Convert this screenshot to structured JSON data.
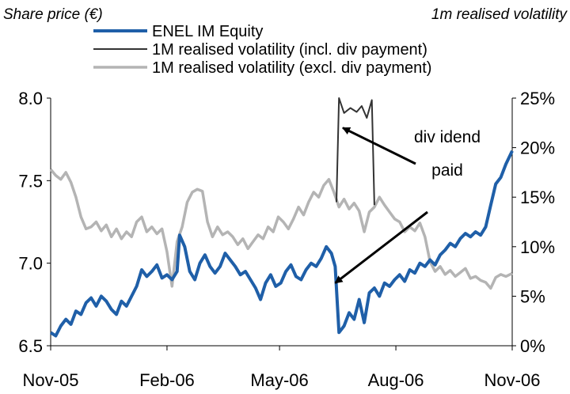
{
  "chart_data": {
    "type": "line",
    "left_axis_title": "Share price (€)",
    "right_axis_title": "1m realised volatility",
    "x_ticks": [
      "Nov-05",
      "Feb-06",
      "May-06",
      "Aug-06",
      "Nov-06"
    ],
    "x_range": [
      "2005-11-01",
      "2006-11-01"
    ],
    "y_left_ticks": [
      "6.5",
      "7.0",
      "7.5",
      "8.0"
    ],
    "y_left_range": [
      6.5,
      8.0
    ],
    "y_right_ticks": [
      "0%",
      "5%",
      "10%",
      "15%",
      "20%",
      "25%"
    ],
    "y_right_range": [
      0,
      25
    ],
    "grid": false,
    "legend_position": "top",
    "series": [
      {
        "name": "ENEL IM Equity",
        "axis": "left",
        "color": "#1f5fa8",
        "points": [
          [
            "2005-11-01",
            6.58
          ],
          [
            "2005-11-05",
            6.56
          ],
          [
            "2005-11-09",
            6.62
          ],
          [
            "2005-11-13",
            6.66
          ],
          [
            "2005-11-17",
            6.63
          ],
          [
            "2005-11-21",
            6.71
          ],
          [
            "2005-11-25",
            6.69
          ],
          [
            "2005-11-29",
            6.76
          ],
          [
            "2005-12-03",
            6.79
          ],
          [
            "2005-12-07",
            6.74
          ],
          [
            "2005-12-11",
            6.8
          ],
          [
            "2005-12-15",
            6.77
          ],
          [
            "2005-12-19",
            6.72
          ],
          [
            "2005-12-23",
            6.69
          ],
          [
            "2005-12-27",
            6.77
          ],
          [
            "2005-12-31",
            6.74
          ],
          [
            "2006-01-04",
            6.8
          ],
          [
            "2006-01-08",
            6.86
          ],
          [
            "2006-01-12",
            6.96
          ],
          [
            "2006-01-16",
            6.92
          ],
          [
            "2006-01-20",
            6.95
          ],
          [
            "2006-01-24",
            6.99
          ],
          [
            "2006-01-28",
            6.91
          ],
          [
            "2006-02-01",
            6.93
          ],
          [
            "2006-02-05",
            6.9
          ],
          [
            "2006-02-09",
            6.95
          ],
          [
            "2006-02-11",
            7.17
          ],
          [
            "2006-02-15",
            7.1
          ],
          [
            "2006-02-19",
            6.95
          ],
          [
            "2006-02-23",
            6.9
          ],
          [
            "2006-02-27",
            7.0
          ],
          [
            "2006-03-03",
            7.05
          ],
          [
            "2006-03-07",
            6.98
          ],
          [
            "2006-03-11",
            6.94
          ],
          [
            "2006-03-15",
            6.98
          ],
          [
            "2006-03-19",
            7.06
          ],
          [
            "2006-03-23",
            7.02
          ],
          [
            "2006-03-27",
            6.98
          ],
          [
            "2006-03-31",
            6.93
          ],
          [
            "2006-04-04",
            6.95
          ],
          [
            "2006-04-08",
            6.9
          ],
          [
            "2006-04-12",
            6.85
          ],
          [
            "2006-04-16",
            6.78
          ],
          [
            "2006-04-20",
            6.88
          ],
          [
            "2006-04-24",
            6.93
          ],
          [
            "2006-04-28",
            6.86
          ],
          [
            "2006-05-02",
            6.88
          ],
          [
            "2006-05-06",
            6.95
          ],
          [
            "2006-05-10",
            6.99
          ],
          [
            "2006-05-14",
            6.92
          ],
          [
            "2006-05-18",
            6.9
          ],
          [
            "2006-05-22",
            6.96
          ],
          [
            "2006-05-26",
            7.0
          ],
          [
            "2006-05-30",
            6.98
          ],
          [
            "2006-06-03",
            7.03
          ],
          [
            "2006-06-07",
            7.1
          ],
          [
            "2006-06-11",
            7.06
          ],
          [
            "2006-06-14",
            6.98
          ],
          [
            "2006-06-17",
            6.58
          ],
          [
            "2006-06-21",
            6.62
          ],
          [
            "2006-06-25",
            6.7
          ],
          [
            "2006-06-29",
            6.66
          ],
          [
            "2006-07-03",
            6.78
          ],
          [
            "2006-07-07",
            6.64
          ],
          [
            "2006-07-11",
            6.82
          ],
          [
            "2006-07-15",
            6.85
          ],
          [
            "2006-07-19",
            6.8
          ],
          [
            "2006-07-23",
            6.88
          ],
          [
            "2006-07-27",
            6.86
          ],
          [
            "2006-07-31",
            6.9
          ],
          [
            "2006-08-04",
            6.93
          ],
          [
            "2006-08-08",
            6.89
          ],
          [
            "2006-08-12",
            6.96
          ],
          [
            "2006-08-16",
            6.94
          ],
          [
            "2006-08-20",
            7.0
          ],
          [
            "2006-08-24",
            6.98
          ],
          [
            "2006-08-28",
            7.02
          ],
          [
            "2006-09-01",
            6.99
          ],
          [
            "2006-09-05",
            7.05
          ],
          [
            "2006-09-09",
            7.08
          ],
          [
            "2006-09-13",
            7.12
          ],
          [
            "2006-09-17",
            7.1
          ],
          [
            "2006-09-21",
            7.15
          ],
          [
            "2006-09-25",
            7.18
          ],
          [
            "2006-09-29",
            7.16
          ],
          [
            "2006-10-03",
            7.19
          ],
          [
            "2006-10-07",
            7.17
          ],
          [
            "2006-10-11",
            7.22
          ],
          [
            "2006-10-15",
            7.35
          ],
          [
            "2006-10-19",
            7.48
          ],
          [
            "2006-10-23",
            7.52
          ],
          [
            "2006-10-27",
            7.6
          ],
          [
            "2006-11-01",
            7.68
          ]
        ]
      },
      {
        "name": "1M realised volatility (incl. div payment)",
        "axis": "right",
        "color": "#333333",
        "points": [
          [
            "2006-06-15",
            14.5
          ],
          [
            "2006-06-17",
            25.0
          ],
          [
            "2006-06-21",
            23.5
          ],
          [
            "2006-06-26",
            24.0
          ],
          [
            "2006-07-01",
            23.6
          ],
          [
            "2006-07-05",
            24.2
          ],
          [
            "2006-07-09",
            23.0
          ],
          [
            "2006-07-13",
            24.8
          ],
          [
            "2006-07-15",
            14.2
          ]
        ]
      },
      {
        "name": "1M realised volatility (excl. div payment)",
        "axis": "right",
        "color": "#b4b4b4",
        "points": [
          [
            "2005-11-01",
            17.8
          ],
          [
            "2005-11-05",
            17.2
          ],
          [
            "2005-11-09",
            16.8
          ],
          [
            "2005-11-13",
            17.5
          ],
          [
            "2005-11-17",
            16.5
          ],
          [
            "2005-11-21",
            15.0
          ],
          [
            "2005-11-25",
            13.0
          ],
          [
            "2005-11-29",
            11.8
          ],
          [
            "2005-12-03",
            12.0
          ],
          [
            "2005-12-07",
            12.5
          ],
          [
            "2005-12-11",
            11.6
          ],
          [
            "2005-12-15",
            12.2
          ],
          [
            "2005-12-19",
            11.0
          ],
          [
            "2005-12-23",
            11.8
          ],
          [
            "2005-12-27",
            10.8
          ],
          [
            "2005-12-31",
            11.5
          ],
          [
            "2006-01-04",
            11.0
          ],
          [
            "2006-01-08",
            12.5
          ],
          [
            "2006-01-12",
            13.0
          ],
          [
            "2006-01-16",
            11.5
          ],
          [
            "2006-01-20",
            12.0
          ],
          [
            "2006-01-24",
            11.3
          ],
          [
            "2006-01-28",
            11.8
          ],
          [
            "2006-02-01",
            9.5
          ],
          [
            "2006-02-05",
            6.0
          ],
          [
            "2006-02-09",
            10.5
          ],
          [
            "2006-02-13",
            12.0
          ],
          [
            "2006-02-17",
            14.5
          ],
          [
            "2006-02-21",
            15.5
          ],
          [
            "2006-02-25",
            15.8
          ],
          [
            "2006-03-01",
            15.6
          ],
          [
            "2006-03-05",
            12.5
          ],
          [
            "2006-03-09",
            11.0
          ],
          [
            "2006-03-13",
            12.0
          ],
          [
            "2006-03-17",
            11.2
          ],
          [
            "2006-03-21",
            11.5
          ],
          [
            "2006-03-25",
            11.0
          ],
          [
            "2006-03-29",
            10.2
          ],
          [
            "2006-04-02",
            10.8
          ],
          [
            "2006-04-06",
            9.8
          ],
          [
            "2006-04-10",
            10.5
          ],
          [
            "2006-04-14",
            11.2
          ],
          [
            "2006-04-18",
            10.8
          ],
          [
            "2006-04-22",
            12.0
          ],
          [
            "2006-04-26",
            11.5
          ],
          [
            "2006-04-30",
            13.0
          ],
          [
            "2006-05-04",
            12.5
          ],
          [
            "2006-05-08",
            11.8
          ],
          [
            "2006-05-12",
            12.8
          ],
          [
            "2006-05-16",
            14.0
          ],
          [
            "2006-05-20",
            13.2
          ],
          [
            "2006-05-24",
            14.5
          ],
          [
            "2006-05-28",
            15.5
          ],
          [
            "2006-06-01",
            15.0
          ],
          [
            "2006-06-05",
            16.2
          ],
          [
            "2006-06-09",
            16.8
          ],
          [
            "2006-06-13",
            15.5
          ],
          [
            "2006-06-17",
            14.0
          ],
          [
            "2006-06-21",
            14.8
          ],
          [
            "2006-06-25",
            13.8
          ],
          [
            "2006-06-29",
            14.4
          ],
          [
            "2006-07-03",
            13.6
          ],
          [
            "2006-07-07",
            11.5
          ],
          [
            "2006-07-11",
            13.5
          ],
          [
            "2006-07-15",
            14.0
          ],
          [
            "2006-07-19",
            15.0
          ],
          [
            "2006-07-23",
            14.2
          ],
          [
            "2006-07-27",
            13.5
          ],
          [
            "2006-07-31",
            12.8
          ],
          [
            "2006-08-04",
            12.5
          ],
          [
            "2006-08-08",
            11.5
          ],
          [
            "2006-08-12",
            12.0
          ],
          [
            "2006-08-16",
            11.6
          ],
          [
            "2006-08-20",
            12.4
          ],
          [
            "2006-08-24",
            11.0
          ],
          [
            "2006-08-28",
            8.5
          ],
          [
            "2006-09-01",
            7.5
          ],
          [
            "2006-09-05",
            8.0
          ],
          [
            "2006-09-09",
            7.2
          ],
          [
            "2006-09-13",
            7.6
          ],
          [
            "2006-09-17",
            7.0
          ],
          [
            "2006-09-21",
            7.4
          ],
          [
            "2006-09-25",
            7.8
          ],
          [
            "2006-09-29",
            6.8
          ],
          [
            "2006-10-03",
            7.0
          ],
          [
            "2006-10-07",
            6.6
          ],
          [
            "2006-10-11",
            6.4
          ],
          [
            "2006-10-15",
            5.8
          ],
          [
            "2006-10-19",
            6.9
          ],
          [
            "2006-10-23",
            7.2
          ],
          [
            "2006-10-27",
            7.0
          ],
          [
            "2006-11-01",
            7.3
          ]
        ]
      }
    ],
    "annotation": {
      "line1": "div idend",
      "line2": "paid",
      "arrows_to": [
        [
          "2006-06-20",
          7.82
        ],
        [
          "2006-06-14",
          6.88
        ]
      ]
    }
  }
}
